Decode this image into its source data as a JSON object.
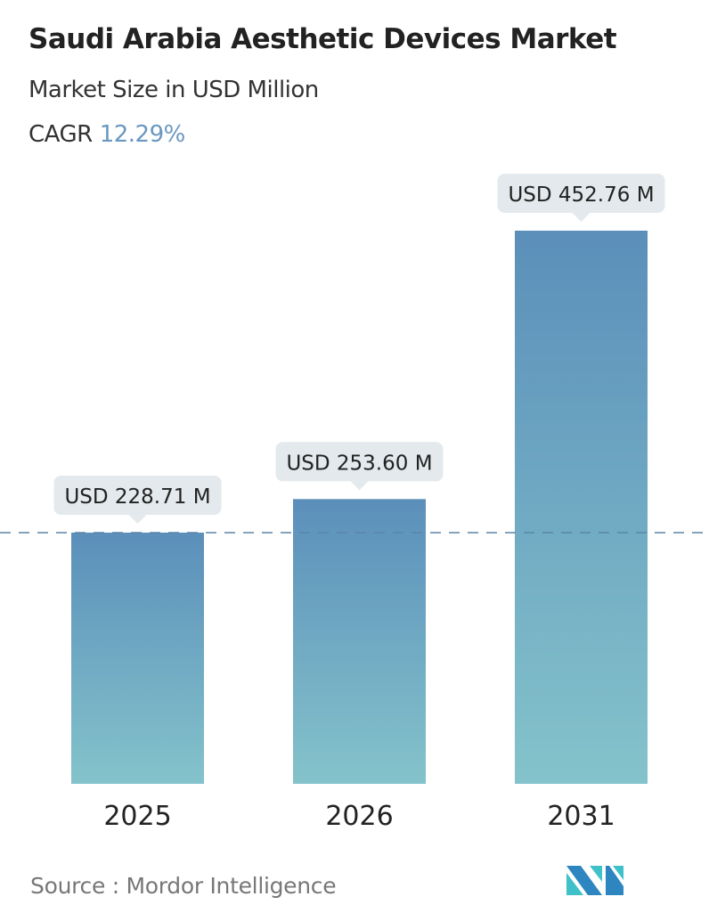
{
  "chart_data": {
    "type": "bar",
    "title": "Saudi Arabia Aesthetic Devices Market",
    "subtitle": "Market Size in USD Million",
    "cagr_label": "CAGR",
    "cagr_value": "12.29%",
    "categories": [
      "2025",
      "2026",
      "2031"
    ],
    "values": [
      228.71,
      253.6,
      452.76
    ],
    "data_labels": [
      "USD 228.71 M",
      "USD 253.60 M",
      "USD 452.76 M"
    ],
    "grid": false,
    "reference_line": "dashed line at 2025 value",
    "colors": {
      "bar_top": "#5b8fba",
      "bar_bottom": "#84c3cb",
      "label_bg": "#e3e9ec",
      "dash": "#5b84a8",
      "cagr": "#6a98c0"
    }
  },
  "source": "Source :  Mordor Intelligence",
  "logo": "Mordor Intelligence logo"
}
